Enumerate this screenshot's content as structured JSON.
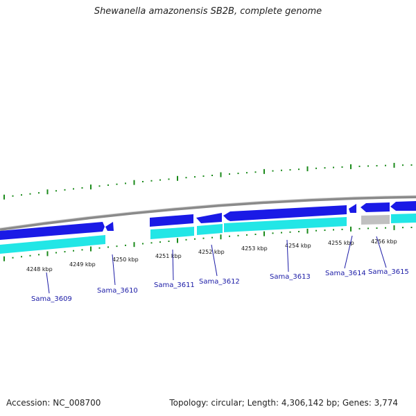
{
  "title": "Shewanella amazonensis SB2B, complete genome",
  "footer": {
    "accession": "Accession: NC_008700",
    "summary": "Topology: circular; Length: 4,306,142 bp; Genes: 3,774"
  },
  "colors": {
    "backbone": "#8a8a8a",
    "forward_cds": "#1a1ae6",
    "forward_track": "#22e6e6",
    "unknown": "#c0c0c0",
    "tick": "#1a8a1a",
    "label": "#1a1aa6"
  },
  "scale": {
    "ticks": [
      {
        "label": "4248 kbp"
      },
      {
        "label": "4249 kbp"
      },
      {
        "label": "4250 kbp"
      },
      {
        "label": "4251 kbp"
      },
      {
        "label": "4252 kbp"
      },
      {
        "label": "4253 kbp"
      },
      {
        "label": "4254 kbp"
      },
      {
        "label": "4255 kbp"
      },
      {
        "label": "4256 kbp"
      }
    ]
  },
  "genes": [
    {
      "name": "Sama_3609"
    },
    {
      "name": "Sama_3610"
    },
    {
      "name": "Sama_3611"
    },
    {
      "name": "Sama_3612"
    },
    {
      "name": "Sama_3613"
    },
    {
      "name": "Sama_3614"
    },
    {
      "name": "Sama_3615"
    }
  ]
}
